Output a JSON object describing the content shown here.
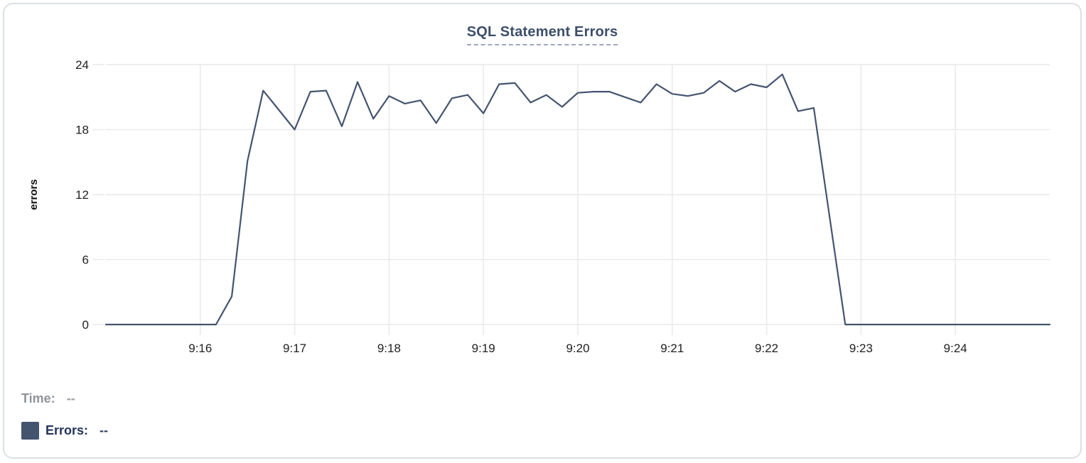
{
  "colors": {
    "line": "#44546F",
    "title": "#3D4E6B",
    "title_underline": "#9AA9C0",
    "grid": "#E9E9E9",
    "tick_text": "#1F1F1F",
    "axis_label_text": "#111111",
    "legend_time": "#8F939B",
    "legend_errors": "#24335A",
    "swatch": "#44536E",
    "card_border": "#DCDFE3"
  },
  "chart_data": {
    "type": "line",
    "title": "SQL Statement Errors",
    "xlabel": "",
    "ylabel": "errors",
    "ylim": [
      0,
      24
    ],
    "yticks": [
      0,
      6,
      12,
      18,
      24
    ],
    "xticks": [
      "9:16",
      "9:17",
      "9:18",
      "9:19",
      "9:20",
      "9:21",
      "9:22",
      "9:23",
      "9:24"
    ],
    "x_range": [
      "9:15",
      "9:25"
    ],
    "sample_interval_seconds": 10,
    "grid": true,
    "legend_position": "bottom-left",
    "markers": false,
    "series": [
      {
        "name": "Errors",
        "color": "#44546F",
        "values": [
          0,
          0,
          0,
          0,
          0,
          0,
          0,
          0,
          2.6,
          15.1,
          21.6,
          19.8,
          18,
          21.5,
          21.6,
          18.3,
          22.4,
          19,
          21.1,
          20.4,
          20.7,
          18.6,
          20.9,
          21.2,
          19.5,
          22.2,
          22.3,
          20.5,
          21.2,
          20.1,
          21.4,
          21.5,
          21.5,
          21,
          20.5,
          22.2,
          21.3,
          21.1,
          21.4,
          22.5,
          21.5,
          22.2,
          21.9,
          23.1,
          19.7,
          20,
          10,
          0,
          0,
          0,
          0,
          0,
          0,
          0,
          0,
          0,
          0,
          0,
          0,
          0,
          0
        ]
      }
    ]
  },
  "legend": {
    "time_label": "Time:",
    "time_value": "--",
    "errors_label": "Errors:",
    "errors_value": "--"
  }
}
